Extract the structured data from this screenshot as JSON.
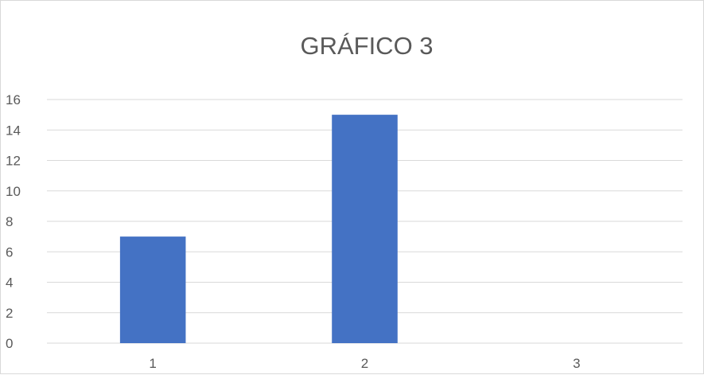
{
  "chart_data": {
    "type": "bar",
    "title": "GRÁFICO 3",
    "categories": [
      "1",
      "2",
      "3"
    ],
    "series": [
      {
        "values": [
          7,
          15,
          0
        ]
      }
    ],
    "xlabel": "",
    "ylabel": "",
    "ylim": [
      0,
      16
    ],
    "yticks": [
      "0",
      "2",
      "4",
      "6",
      "8",
      "10",
      "12",
      "14",
      "16"
    ],
    "grid": true,
    "legend": "none",
    "colors": {
      "bar": "#4472c4",
      "gridline": "#d9d9d9",
      "text": "#595959"
    }
  }
}
